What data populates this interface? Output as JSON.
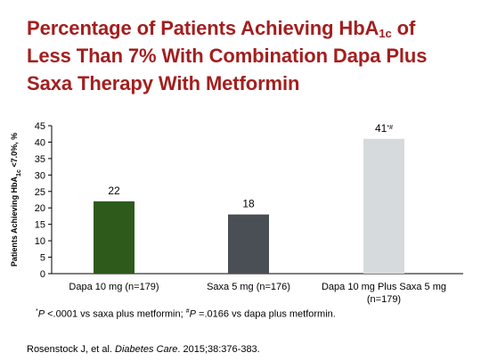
{
  "title": {
    "line1_pre": "Percentage of Patients Achieving HbA",
    "line1_sub": "1c",
    "line1_post": " of",
    "line2": "Less Than 7% With Combination Dapa Plus",
    "line3": "Saxa Therapy With Metformin"
  },
  "chart_data": {
    "type": "bar",
    "categories": [
      "Dapa 10 mg (n=179)",
      "Saxa 5 mg (n=176)",
      "Dapa 10 mg Plus Saxa 5 mg (n=179)"
    ],
    "category_lines": [
      [
        "Dapa 10 mg (n=179)"
      ],
      [
        "Saxa 5 mg (n=176)"
      ],
      [
        "Dapa 10 mg Plus Saxa 5 mg",
        "(n=179)"
      ]
    ],
    "values": [
      22,
      18,
      41
    ],
    "value_labels": [
      "22",
      "18",
      "41"
    ],
    "value_superscripts": [
      "",
      "",
      "*#"
    ],
    "colors": [
      "#2e5a1c",
      "#4a4e55",
      "#d6dadd"
    ],
    "ylabel_pre": "Patients Achieving HbA",
    "ylabel_sub": "1c",
    "ylabel_post": " <7.0%, %",
    "ylim": [
      0,
      45
    ],
    "yticks": [
      "0",
      "5",
      "10",
      "15",
      "20",
      "25",
      "30",
      "35",
      "40",
      "45"
    ],
    "grid": false
  },
  "footnote": {
    "mark1": "*",
    "text1": "P",
    "text2": " <.0001 vs saxa plus metformin; ",
    "mark2": "#",
    "text3": "P",
    "text4": " =.0166 vs dapa plus metformin."
  },
  "citation": {
    "authors": "Rosenstock J, et al. ",
    "journal": "Diabetes Care",
    "details": ". 2015;38:376-383."
  }
}
